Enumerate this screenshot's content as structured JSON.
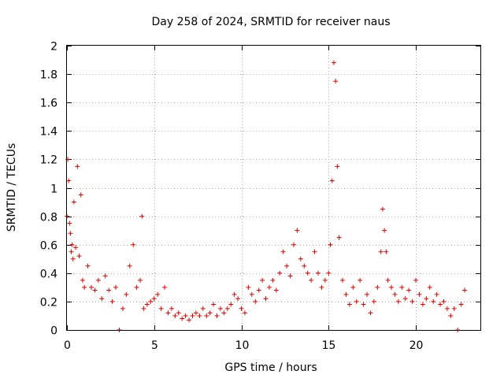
{
  "chart_data": {
    "type": "scatter",
    "title": "Day 258 of 2024, SRMTID for receiver naus",
    "xlabel": "GPS time / hours",
    "ylabel": "SRMTID / TECUs",
    "xlim": [
      0,
      23.7
    ],
    "ylim": [
      0,
      2
    ],
    "xticks": [
      0,
      5,
      10,
      15,
      20
    ],
    "xtick_labels": [
      "0",
      "5",
      "10",
      "15",
      "20"
    ],
    "yticks": [
      0,
      0.2,
      0.4,
      0.6,
      0.8,
      1,
      1.2,
      1.4,
      1.6,
      1.8,
      2
    ],
    "ytick_labels": [
      "0",
      "0.2",
      "0.4",
      "0.6",
      "0.8",
      "1",
      "1.2",
      "1.4",
      "1.6",
      "1.8",
      "2"
    ],
    "grid": true,
    "marker": "+",
    "color": "#e00000",
    "series": [
      {
        "name": "SRMTID",
        "x": [
          0.0,
          0.05,
          0.1,
          0.15,
          0.2,
          0.25,
          0.3,
          0.35,
          0.4,
          0.5,
          0.6,
          0.7,
          0.8,
          0.9,
          1.0,
          1.2,
          1.4,
          1.6,
          1.8,
          2.0,
          2.2,
          2.4,
          2.6,
          2.8,
          3.0,
          3.2,
          3.4,
          3.6,
          3.8,
          4.0,
          4.2,
          4.3,
          4.4,
          4.6,
          4.8,
          5.0,
          5.2,
          5.4,
          5.6,
          5.8,
          6.0,
          6.2,
          6.4,
          6.6,
          6.8,
          7.0,
          7.2,
          7.4,
          7.6,
          7.8,
          8.0,
          8.2,
          8.4,
          8.6,
          8.8,
          9.0,
          9.2,
          9.4,
          9.6,
          9.8,
          10.0,
          10.2,
          10.4,
          10.6,
          10.8,
          11.0,
          11.2,
          11.4,
          11.6,
          11.8,
          12.0,
          12.2,
          12.4,
          12.6,
          12.8,
          13.0,
          13.2,
          13.4,
          13.6,
          13.8,
          14.0,
          14.2,
          14.4,
          14.6,
          14.8,
          15.0,
          15.1,
          15.2,
          15.3,
          15.4,
          15.5,
          15.6,
          15.8,
          16.0,
          16.2,
          16.4,
          16.6,
          16.8,
          17.0,
          17.2,
          17.4,
          17.6,
          17.8,
          18.0,
          18.1,
          18.2,
          18.3,
          18.4,
          18.6,
          18.8,
          19.0,
          19.2,
          19.4,
          19.6,
          19.8,
          20.0,
          20.2,
          20.4,
          20.6,
          20.8,
          21.0,
          21.2,
          21.4,
          21.6,
          21.8,
          22.0,
          22.2,
          22.4,
          22.6,
          22.8
        ],
        "y": [
          0.8,
          1.2,
          1.05,
          0.75,
          0.68,
          0.55,
          0.6,
          0.5,
          0.9,
          0.58,
          1.15,
          0.52,
          0.95,
          0.35,
          0.3,
          0.45,
          0.3,
          0.28,
          0.35,
          0.22,
          0.38,
          0.28,
          0.2,
          0.3,
          0.0,
          0.15,
          0.25,
          0.45,
          0.6,
          0.3,
          0.35,
          0.8,
          0.15,
          0.18,
          0.2,
          0.22,
          0.25,
          0.15,
          0.3,
          0.12,
          0.15,
          0.1,
          0.12,
          0.08,
          0.1,
          0.07,
          0.1,
          0.12,
          0.1,
          0.15,
          0.1,
          0.12,
          0.18,
          0.1,
          0.15,
          0.12,
          0.15,
          0.18,
          0.25,
          0.22,
          0.15,
          0.12,
          0.3,
          0.25,
          0.2,
          0.28,
          0.35,
          0.22,
          0.3,
          0.35,
          0.28,
          0.4,
          0.55,
          0.45,
          0.38,
          0.6,
          0.7,
          0.5,
          0.45,
          0.4,
          0.35,
          0.55,
          0.4,
          0.3,
          0.35,
          0.4,
          0.6,
          1.05,
          1.88,
          1.75,
          1.15,
          0.65,
          0.35,
          0.25,
          0.18,
          0.3,
          0.2,
          0.35,
          0.18,
          0.25,
          0.12,
          0.2,
          0.3,
          0.55,
          0.85,
          0.7,
          0.55,
          0.35,
          0.3,
          0.25,
          0.2,
          0.3,
          0.22,
          0.28,
          0.2,
          0.35,
          0.25,
          0.18,
          0.22,
          0.3,
          0.2,
          0.25,
          0.18,
          0.2,
          0.15,
          0.1,
          0.15,
          0.0,
          0.18,
          0.28
        ]
      }
    ]
  }
}
